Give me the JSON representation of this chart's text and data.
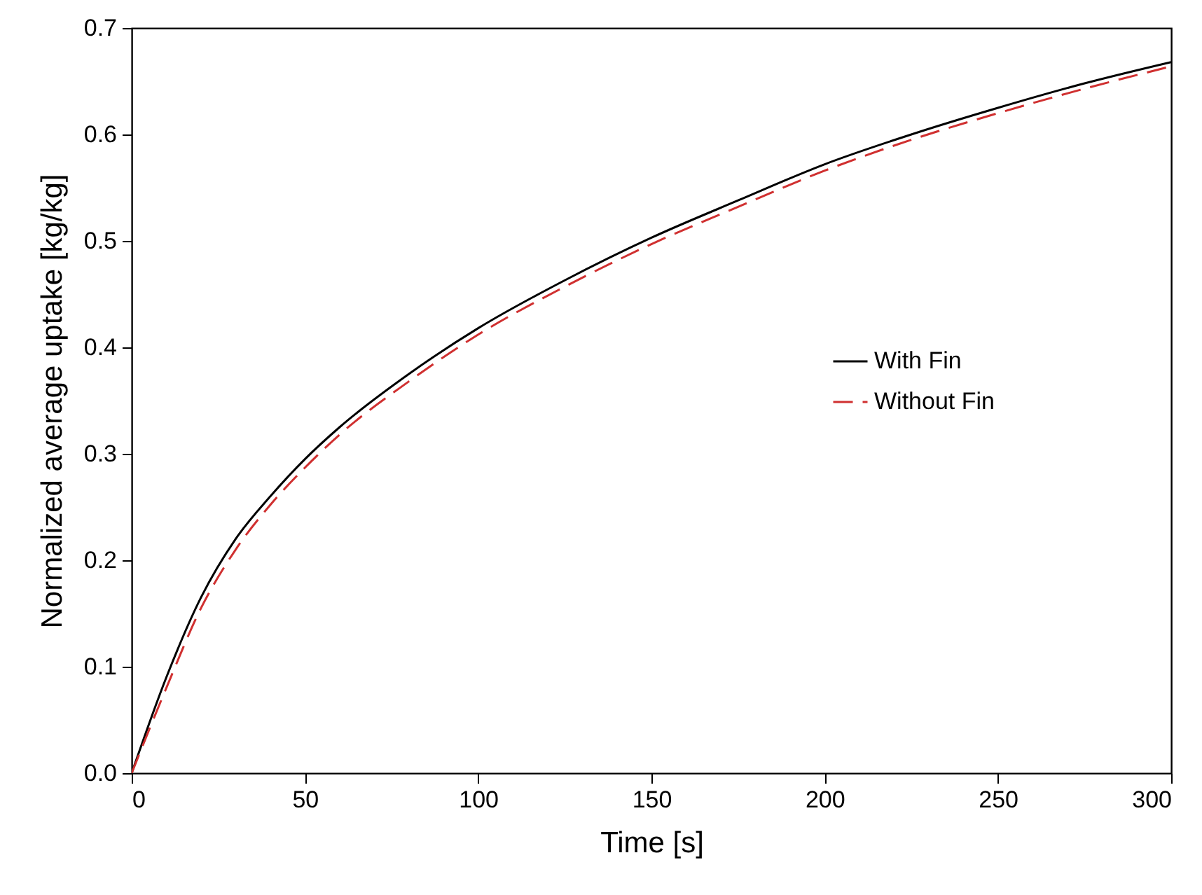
{
  "chart_data": {
    "type": "line",
    "xlabel": "Time [s]",
    "ylabel": "Normalized average uptake [kg/kg]",
    "x": [
      0,
      10,
      20,
      30,
      40,
      50,
      60,
      80,
      100,
      125,
      150,
      175,
      200,
      225,
      250,
      275,
      300
    ],
    "series": [
      {
        "name": "With Fin",
        "color": "#000000",
        "line_style": "solid",
        "values": [
          0,
          0.09,
          0.165,
          0.22,
          0.26,
          0.295,
          0.325,
          0.375,
          0.418,
          0.463,
          0.503,
          0.538,
          0.572,
          0.6,
          0.625,
          0.648,
          0.668
        ]
      },
      {
        "name": "Without Fin",
        "color": "#d03030",
        "line_style": "dashed",
        "values": [
          0,
          0.08,
          0.155,
          0.21,
          0.252,
          0.287,
          0.318,
          0.368,
          0.412,
          0.457,
          0.497,
          0.532,
          0.566,
          0.595,
          0.62,
          0.643,
          0.664
        ]
      }
    ],
    "xlim": [
      0,
      300
    ],
    "xticks": [
      0,
      50,
      100,
      150,
      200,
      250,
      300
    ],
    "ylim": [
      0,
      0.7
    ],
    "yticks": [
      {
        "value": 0,
        "label": "0.0"
      },
      0.1,
      0.2,
      0.3,
      0.4,
      0.5,
      0.6,
      0.7
    ],
    "grid": false,
    "legend": "right"
  }
}
